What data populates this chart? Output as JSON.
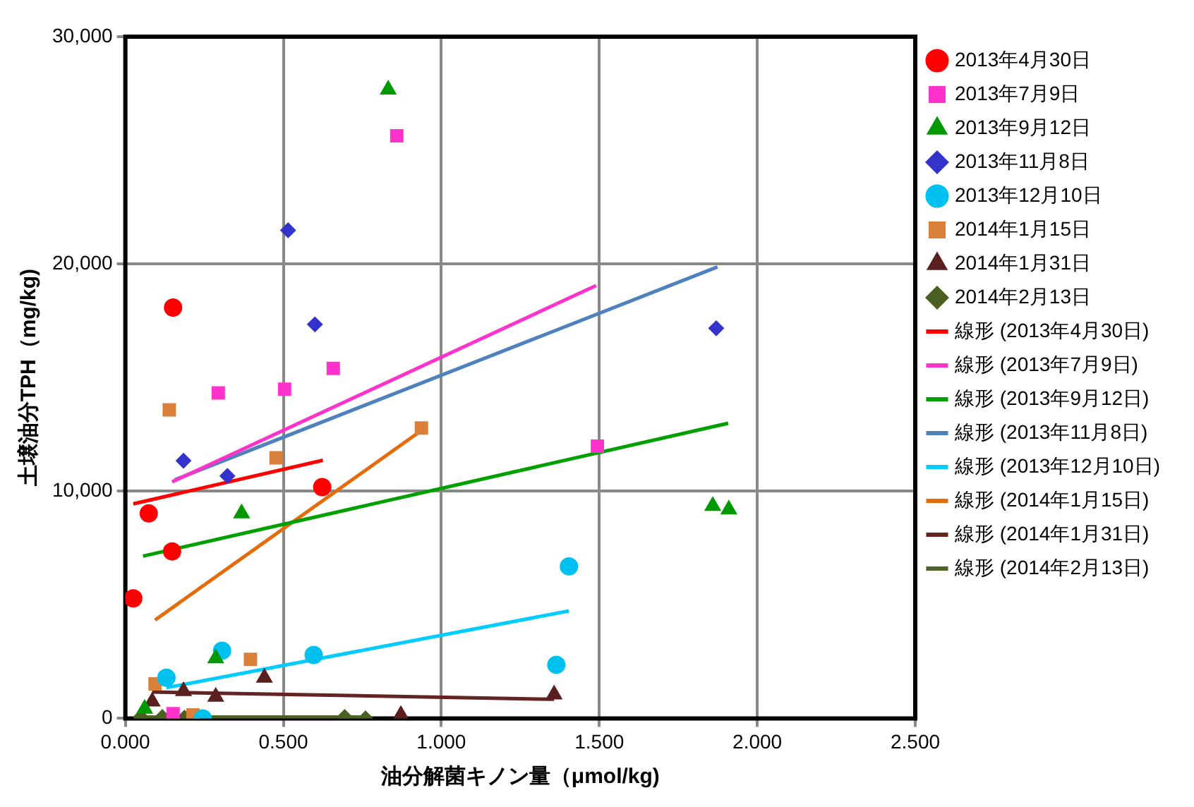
{
  "chart_data": {
    "type": "scatter",
    "xlabel": "油分解菌キノン量（μmol/kg)",
    "ylabel": "土壌油分TPH（mg/kg)",
    "xlim": [
      0,
      2.5
    ],
    "xticks": [
      {
        "value": 0,
        "label": "0.000"
      },
      {
        "value": 0.5,
        "label": "0.500"
      },
      {
        "value": 1,
        "label": "1.000"
      },
      {
        "value": 1.5,
        "label": "1.500"
      },
      {
        "value": 2,
        "label": "2.000"
      },
      {
        "value": 2.5,
        "label": "2.500"
      }
    ],
    "ylim": [
      0,
      30000
    ],
    "yticks": [
      0,
      {
        "value": 10000,
        "label": "10,000"
      },
      {
        "value": 20000,
        "label": "20,000"
      },
      {
        "value": 30000,
        "label": "30,000"
      }
    ],
    "grid": true,
    "legend": "right",
    "series": [
      {
        "name": "2013年4月30日",
        "marker": "circle",
        "color": "#ff0000",
        "x": [
          0.151,
          0.074,
          0.148,
          0.025,
          0.623
        ],
        "values": [
          18080,
          9020,
          7350,
          5280,
          10180
        ]
      },
      {
        "name": "2013年7月9日",
        "marker": "square",
        "color": "#ff33cc",
        "x": [
          0.859,
          0.658,
          0.504,
          0.294,
          1.494,
          0.151
        ],
        "values": [
          25640,
          15400,
          14490,
          14320,
          11980,
          210
        ]
      },
      {
        "name": "2013年9月12日",
        "marker": "triangle",
        "color": "#009900",
        "x": [
          0.832,
          0.368,
          1.859,
          1.91,
          0.286,
          0.061
        ],
        "values": [
          27670,
          9020,
          9350,
          9190,
          2640,
          420
        ]
      },
      {
        "name": "2013年11月8日",
        "marker": "diamond",
        "color": "#3333cc",
        "x": [
          0.515,
          0.6,
          0.184,
          0.323,
          1.87
        ],
        "values": [
          21480,
          17340,
          11340,
          10670,
          17170
        ]
      },
      {
        "name": "2013年12月10日",
        "marker": "circle",
        "color": "#00c0f0",
        "x": [
          0.306,
          0.596,
          0.13,
          0.245,
          1.404,
          1.364
        ],
        "values": [
          2980,
          2790,
          1790,
          0,
          6690,
          2360
        ]
      },
      {
        "name": "2014年1月15日",
        "marker": "square",
        "color": "#d9803a",
        "x": [
          0.139,
          0.477,
          0.937,
          0.396,
          0.094,
          0.214
        ],
        "values": [
          13580,
          11470,
          12780,
          2600,
          1520,
          150
        ]
      },
      {
        "name": "2014年1月31日",
        "marker": "triangle",
        "color": "#5a2020",
        "x": [
          0.44,
          0.184,
          0.286,
          0.085,
          0.872,
          1.357
        ],
        "values": [
          1790,
          1200,
          950,
          740,
          150,
          1050
        ]
      },
      {
        "name": "2014年2月13日",
        "marker": "diamond",
        "color": "#4a6020",
        "x": [
          0.049,
          0.117,
          0.187,
          0.694,
          0.76
        ],
        "values": [
          60,
          60,
          30,
          60,
          0
        ]
      },
      {
        "name": "線形 (2013年4月30日)",
        "type": "line",
        "marker": "none",
        "color": "#ff0000",
        "x": [
          0.025,
          0.625
        ],
        "values": [
          9440,
          11360
        ]
      },
      {
        "name": "線形 (2013年7月9日)",
        "type": "line",
        "marker": "none",
        "color": "#ff33cc",
        "x": [
          0.148,
          1.49
        ],
        "values": [
          10410,
          19050
        ]
      },
      {
        "name": "線形 (2013年9月12日)",
        "type": "line",
        "marker": "none",
        "color": "#00a000",
        "x": [
          0.056,
          1.908
        ],
        "values": [
          7140,
          12990
        ]
      },
      {
        "name": "線形 (2013年11月8日)",
        "type": "line",
        "marker": "none",
        "color": "#4f81bd",
        "x": [
          0.157,
          1.874
        ],
        "values": [
          10500,
          19870
        ]
      },
      {
        "name": "線形 (2013年12月10日)",
        "type": "line",
        "marker": "none",
        "color": "#00ccff",
        "x": [
          0.13,
          1.404
        ],
        "values": [
          1350,
          4730
        ]
      },
      {
        "name": "線形 (2014年1月15日)",
        "type": "line",
        "marker": "none",
        "color": "#e46c0a",
        "x": [
          0.094,
          0.937
        ],
        "values": [
          4330,
          12670
        ]
      },
      {
        "name": "線形 (2014年1月31日)",
        "type": "line",
        "marker": "none",
        "color": "#632523",
        "x": [
          0.085,
          1.357
        ],
        "values": [
          1160,
          840
        ]
      },
      {
        "name": "線形 (2014年2月13日)",
        "type": "line",
        "marker": "none",
        "color": "#4f6228",
        "x": [
          0.049,
          0.76
        ],
        "values": [
          60,
          60
        ]
      }
    ]
  }
}
